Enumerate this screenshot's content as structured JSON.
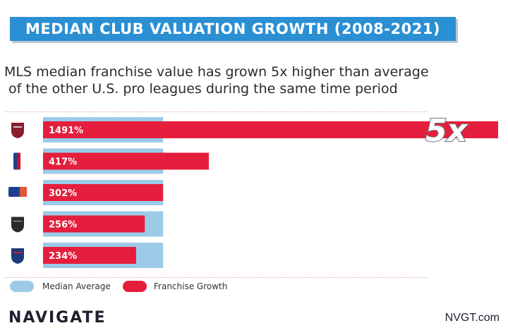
{
  "title": "MEDIAN CLUB VALUATION GROWTH (2008-2021)",
  "subtitle": {
    "line1": "MLS median franchise value has grown 5x higher than average",
    "line2": " of the other U.S. pro leagues during the same time period"
  },
  "callout": "5x",
  "colors": {
    "banner": "#2a8fd3",
    "median": "#9ccbe8",
    "growth": "#e41e3c",
    "text": "#2b2b2b"
  },
  "chart_data": {
    "type": "bar",
    "orientation": "horizontal",
    "title": "MEDIAN CLUB VALUATION GROWTH (2008-2021)",
    "categories": [
      "MLS",
      "NBA",
      "MLB",
      "NHL",
      "NFL"
    ],
    "category_icons": [
      "mls-logo-icon",
      "nba-logo-icon",
      "mlb-logo-icon",
      "nhl-logo-icon",
      "nfl-logo-icon"
    ],
    "series": [
      {
        "name": "Median Average",
        "values": [
          302,
          302,
          302,
          302,
          302
        ]
      },
      {
        "name": "Franchise Growth",
        "values": [
          1491,
          417,
          302,
          256,
          234
        ],
        "labels": [
          "1491%",
          "417%",
          "302%",
          "256%",
          "234%"
        ]
      }
    ],
    "xlabel": "",
    "ylabel": "",
    "legend": "bottom-left",
    "grid": false
  },
  "legend": {
    "median_label": "Median Average",
    "growth_label": "Franchise Growth"
  },
  "footer": {
    "logo": "NAVIGATE",
    "site": "NVGT.com"
  }
}
